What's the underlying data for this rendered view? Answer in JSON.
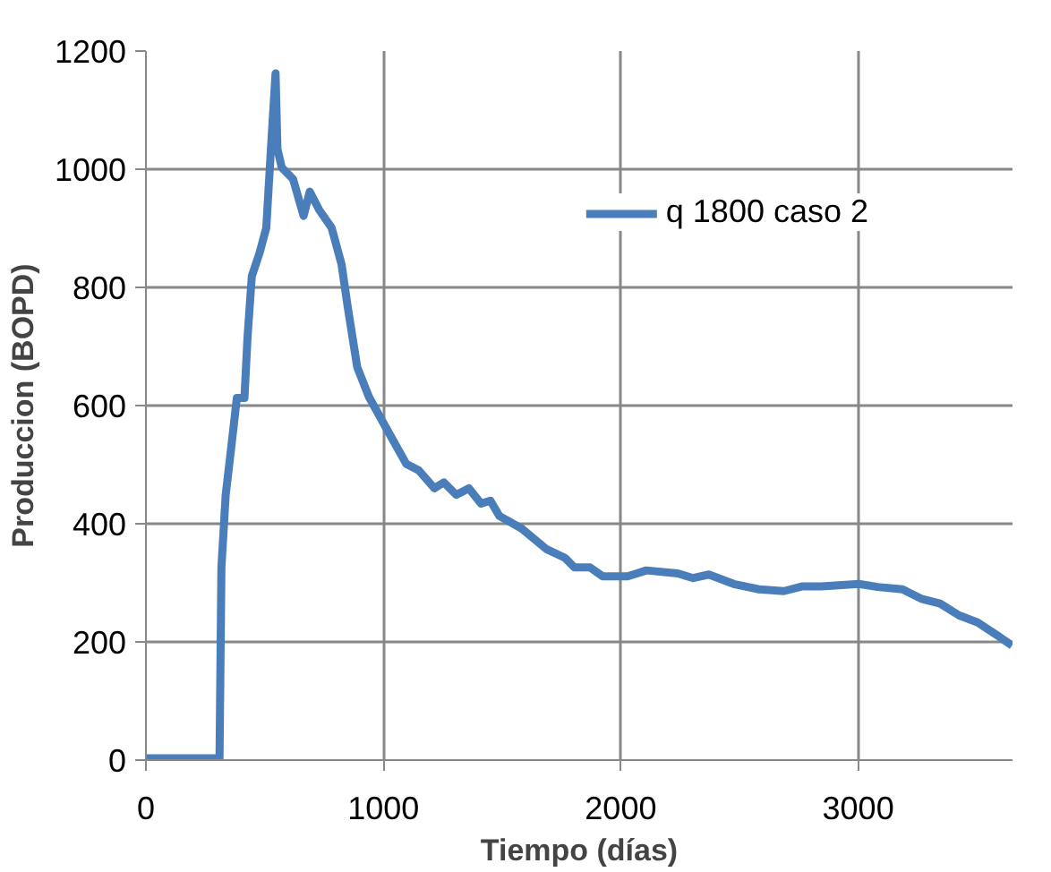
{
  "chart_data": {
    "type": "line",
    "xlabel": "Tiempo (días)",
    "ylabel": "Produccion (BOPD)",
    "xlim": [
      0,
      3650
    ],
    "ylim": [
      0,
      1200
    ],
    "xticks": [
      0,
      1000,
      2000,
      3000
    ],
    "yticks": [
      0,
      200,
      400,
      600,
      800,
      1000,
      1200
    ],
    "grid": true,
    "legend": "top right",
    "marker": "none",
    "line_style": "solid",
    "series": [
      {
        "name": "q 1800 caso 2",
        "color": "#4a7ebb",
        "x": [
          0,
          310,
          318,
          336,
          357,
          383,
          415,
          428,
          446,
          480,
          507,
          525,
          546,
          554,
          572,
          620,
          664,
          690,
          730,
          782,
          824,
          850,
          890,
          940,
          1005,
          1097,
          1150,
          1215,
          1255,
          1307,
          1360,
          1412,
          1451,
          1489,
          1582,
          1687,
          1766,
          1805,
          1871,
          1924,
          2029,
          2108,
          2240,
          2305,
          2371,
          2476,
          2582,
          2687,
          2766,
          2845,
          3003,
          3082,
          3187,
          3266,
          3345,
          3424,
          3503,
          3582,
          3648
        ],
        "values": [
          3,
          3,
          326,
          449,
          521,
          613,
          613,
          716,
          819,
          860,
          901,
          1024,
          1162,
          1034,
          1003,
          983,
          921,
          962,
          931,
          901,
          839,
          767,
          665,
          614,
          567,
          501,
          490,
          460,
          470,
          449,
          460,
          434,
          439,
          413,
          392,
          357,
          342,
          326,
          326,
          311,
          311,
          321,
          316,
          308,
          314,
          298,
          289,
          286,
          294,
          294,
          298,
          293,
          289,
          273,
          265,
          245,
          233,
          212,
          194
        ]
      }
    ]
  }
}
